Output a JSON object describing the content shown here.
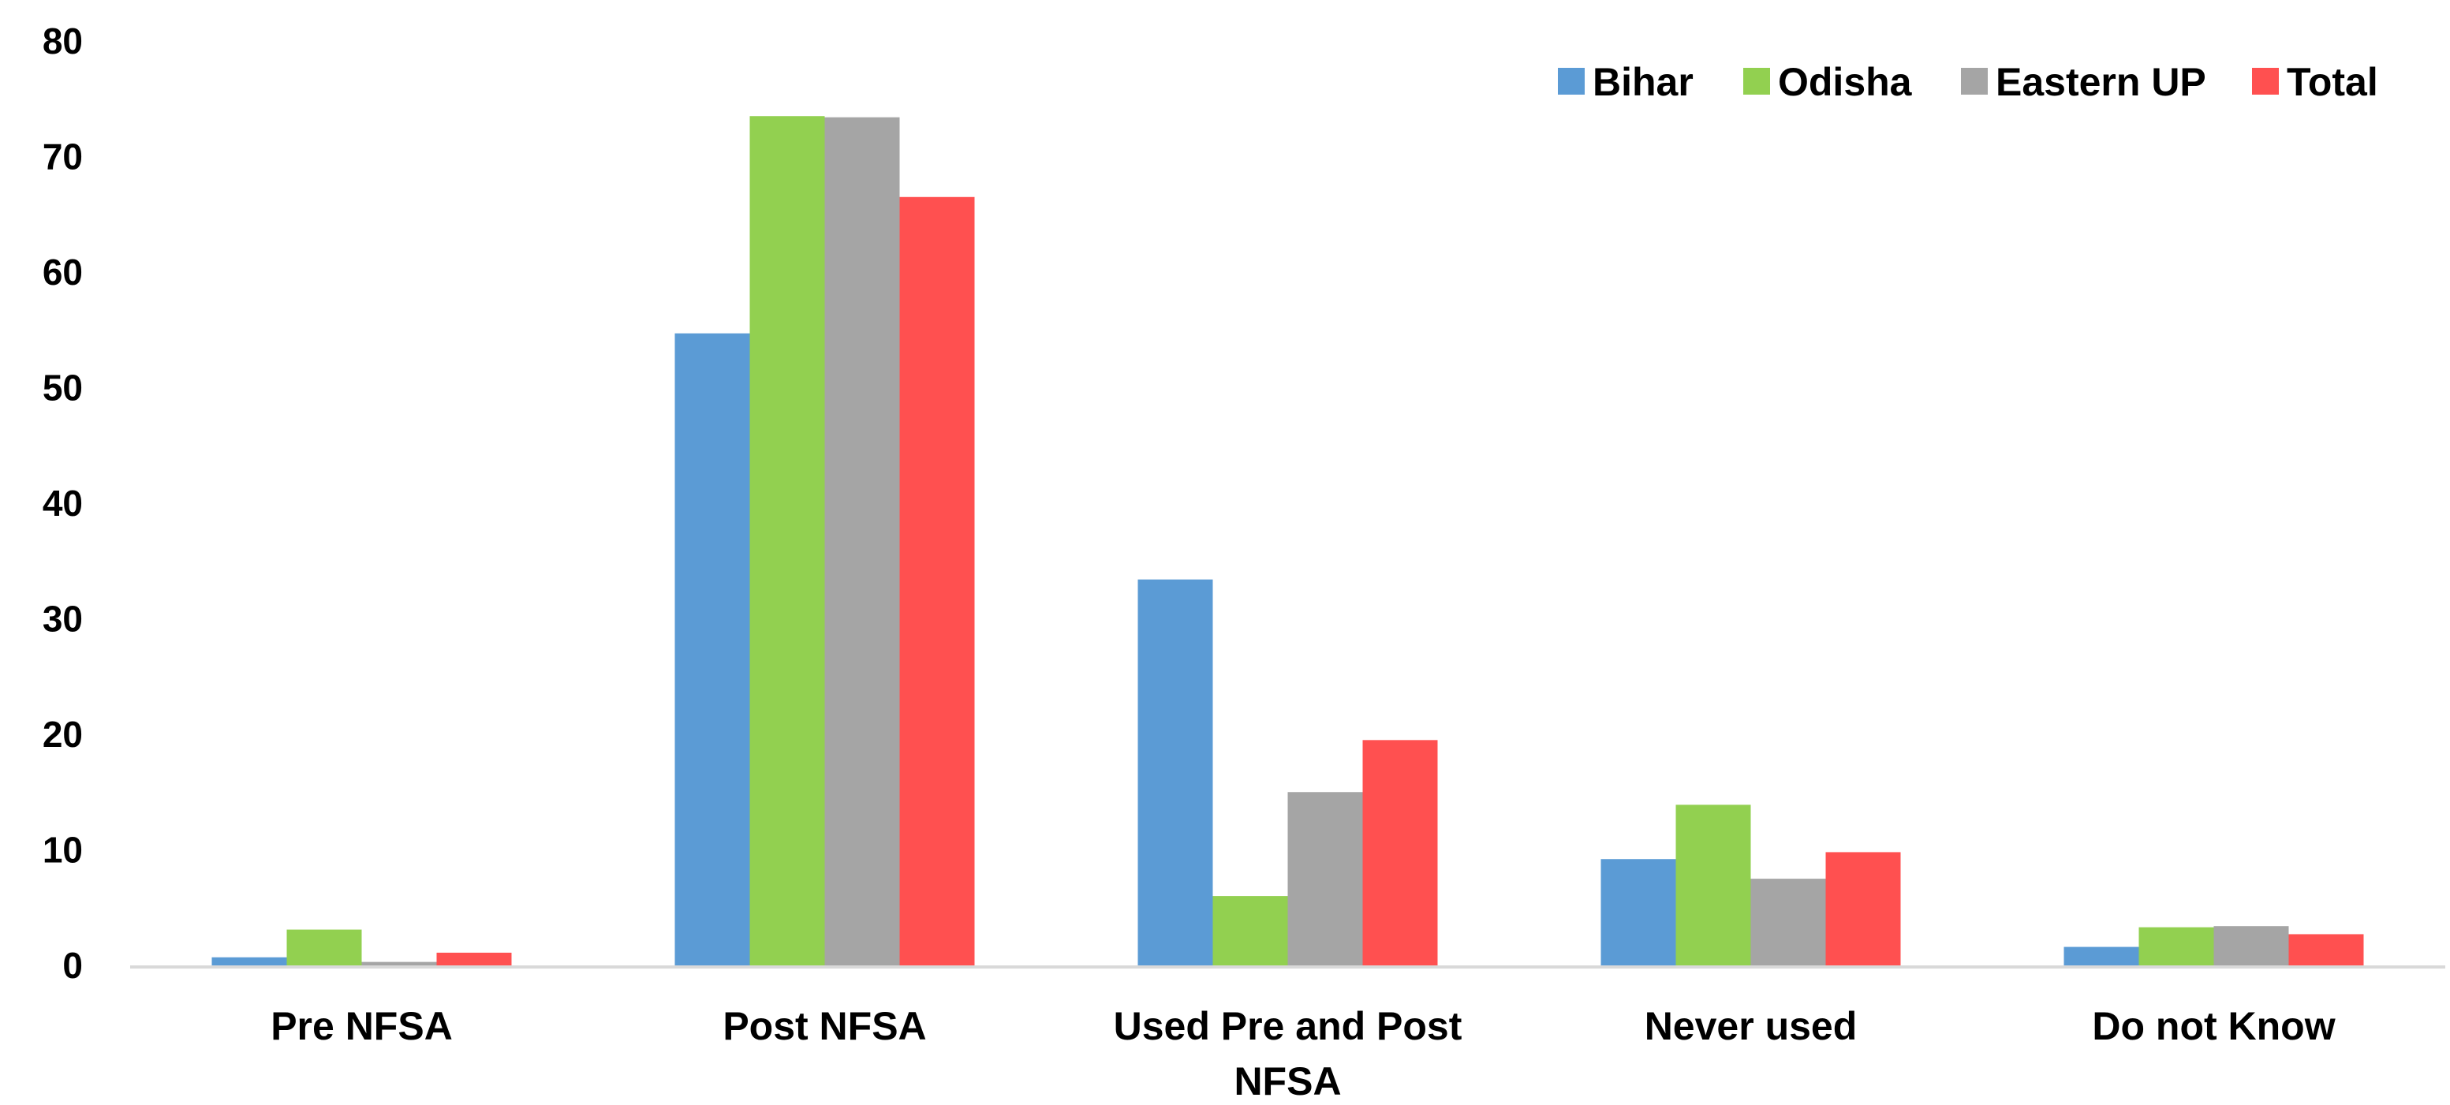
{
  "chart_data": {
    "type": "bar",
    "categories": [
      [
        "Pre NFSA"
      ],
      [
        "Post NFSA"
      ],
      [
        "Used Pre and Post",
        "NFSA"
      ],
      [
        "Never used"
      ],
      [
        "Do not Know"
      ]
    ],
    "series": [
      {
        "name": "Bihar",
        "color": "#5B9BD5",
        "values": [
          0.7,
          54.7,
          33.4,
          9.2,
          1.6
        ]
      },
      {
        "name": "Odisha",
        "color": "#92D050",
        "values": [
          3.1,
          73.5,
          6.0,
          13.9,
          3.3
        ]
      },
      {
        "name": "Eastern UP",
        "color": "#A5A5A5",
        "values": [
          0.3,
          73.4,
          15.0,
          7.5,
          3.4
        ]
      },
      {
        "name": "Total",
        "color": "#FF5050",
        "values": [
          1.1,
          66.5,
          19.5,
          9.8,
          2.7
        ]
      }
    ],
    "y_ticks": [
      "0",
      "10",
      "20",
      "30",
      "40",
      "50",
      "60",
      "70",
      "80"
    ],
    "ylim": [
      0,
      80
    ],
    "grid": false,
    "legend_position": "top-right",
    "axis_color": "#D9D9D9"
  }
}
